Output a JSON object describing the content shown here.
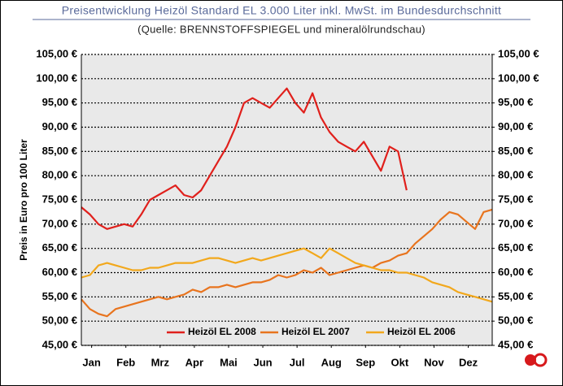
{
  "chart_data": {
    "type": "line",
    "title": "Preisentwicklung Heizöl Standard EL 3.000 Liter inkl. MwSt. im Bundesdurchschnitt",
    "subtitle": "(Quelle: BRENNSTOFFSPIEGEL und mineralölrundschau)",
    "y_label": "Preis in Euro pro 100 Liter",
    "x": [
      0,
      0.25,
      0.5,
      0.75,
      1,
      1.25,
      1.5,
      1.75,
      2,
      2.25,
      2.5,
      2.75,
      3,
      3.25,
      3.5,
      3.75,
      4,
      4.25,
      4.5,
      4.75,
      5,
      5.25,
      5.5,
      5.75,
      6,
      6.25,
      6.5,
      6.75,
      7,
      7.25,
      7.5,
      7.75,
      8,
      8.25,
      8.5,
      8.75,
      9,
      9.25,
      9.5,
      9.75,
      10,
      10.25,
      10.5,
      10.75,
      11,
      11.25,
      11.5,
      11.75,
      12
    ],
    "xlim": [
      0,
      12
    ],
    "xticks": [
      {
        "value": 0.3,
        "label": "Jan"
      },
      {
        "value": 1.3,
        "label": "Feb"
      },
      {
        "value": 2.3,
        "label": "Mrz"
      },
      {
        "value": 3.3,
        "label": "Apr"
      },
      {
        "value": 4.3,
        "label": "Mai"
      },
      {
        "value": 5.3,
        "label": "Jun"
      },
      {
        "value": 6.3,
        "label": "Jul"
      },
      {
        "value": 7.3,
        "label": "Aug"
      },
      {
        "value": 8.3,
        "label": "Sep"
      },
      {
        "value": 9.3,
        "label": "Okt"
      },
      {
        "value": 10.3,
        "label": "Nov"
      },
      {
        "value": 11.3,
        "label": "Dez"
      }
    ],
    "ylim": [
      45,
      105
    ],
    "yticks": [
      {
        "value": 45,
        "label": "45,00 €"
      },
      {
        "value": 50,
        "label": "50,00 €"
      },
      {
        "value": 55,
        "label": "55,00 €"
      },
      {
        "value": 60,
        "label": "60,00 €"
      },
      {
        "value": 65,
        "label": "65,00 €"
      },
      {
        "value": 70,
        "label": "70,00 €"
      },
      {
        "value": 75,
        "label": "75,00 €"
      },
      {
        "value": 80,
        "label": "80,00 €"
      },
      {
        "value": 85,
        "label": "85,00 €"
      },
      {
        "value": 90,
        "label": "90,00 €"
      },
      {
        "value": 95,
        "label": "95,00 €"
      },
      {
        "value": 100,
        "label": "100,00 €"
      },
      {
        "value": 105,
        "label": "105,00 €"
      }
    ],
    "y2lim": [
      45,
      105
    ],
    "y2ticks": [
      {
        "value": 45,
        "label": "45,00 €"
      },
      {
        "value": 50,
        "label": "50,00 €"
      },
      {
        "value": 55,
        "label": "55,00 €"
      },
      {
        "value": 60,
        "label": "60,00 €"
      },
      {
        "value": 65,
        "label": "65,00 €"
      },
      {
        "value": 70,
        "label": "70,00 €"
      },
      {
        "value": 75,
        "label": "75,00 €"
      },
      {
        "value": 80,
        "label": "80,00 €"
      },
      {
        "value": 85,
        "label": "85,00 €"
      },
      {
        "value": 90,
        "label": "90,00 €"
      },
      {
        "value": 95,
        "label": "95,00 €"
      },
      {
        "value": 100,
        "label": "100,00 €"
      },
      {
        "value": 105,
        "label": "105,00 €"
      }
    ],
    "grid": true,
    "legend": "bottom",
    "series": [
      {
        "name": "Heizöl EL 2008",
        "color": "#e0201c",
        "values": [
          73.5,
          72,
          70,
          69,
          69.5,
          70,
          69.5,
          72,
          75,
          76,
          77,
          78,
          76,
          75.5,
          77,
          80,
          83,
          86,
          90,
          95,
          96,
          95,
          94,
          96,
          98,
          95,
          93,
          97,
          92,
          89,
          87,
          86,
          85,
          87,
          84,
          81,
          86,
          85,
          77,
          null,
          null,
          null,
          null,
          null,
          null,
          null,
          null,
          null,
          null
        ]
      },
      {
        "name": "Heizöl EL 2007",
        "color": "#e8741e",
        "values": [
          54.5,
          52.5,
          51.5,
          51,
          52.5,
          53,
          53.5,
          54,
          54.5,
          55,
          54.5,
          55,
          55.5,
          56.5,
          56,
          57,
          57,
          57.5,
          57,
          57.5,
          58,
          58,
          58.5,
          59.5,
          59,
          59.5,
          60.5,
          60,
          61,
          59.5,
          60,
          60.5,
          61,
          61.5,
          61,
          62,
          62.5,
          63.5,
          64,
          66,
          67.5,
          69,
          71,
          72.5,
          72,
          70.5,
          69,
          72.5,
          73
        ]
      },
      {
        "name": "Heizöl EL 2006",
        "color": "#f2a81c",
        "values": [
          59,
          59.5,
          61.5,
          62,
          61.5,
          61,
          60.5,
          60.5,
          61,
          61,
          61.5,
          62,
          62,
          62,
          62.5,
          63,
          63,
          62.5,
          62,
          62.5,
          63,
          62.5,
          63,
          63.5,
          64,
          64.5,
          65,
          64,
          63,
          65,
          64,
          63,
          62,
          61.5,
          61,
          60.5,
          60.5,
          60,
          60,
          59.5,
          59,
          58,
          57.5,
          57,
          56,
          55.5,
          55,
          54.5,
          54
        ]
      }
    ]
  }
}
